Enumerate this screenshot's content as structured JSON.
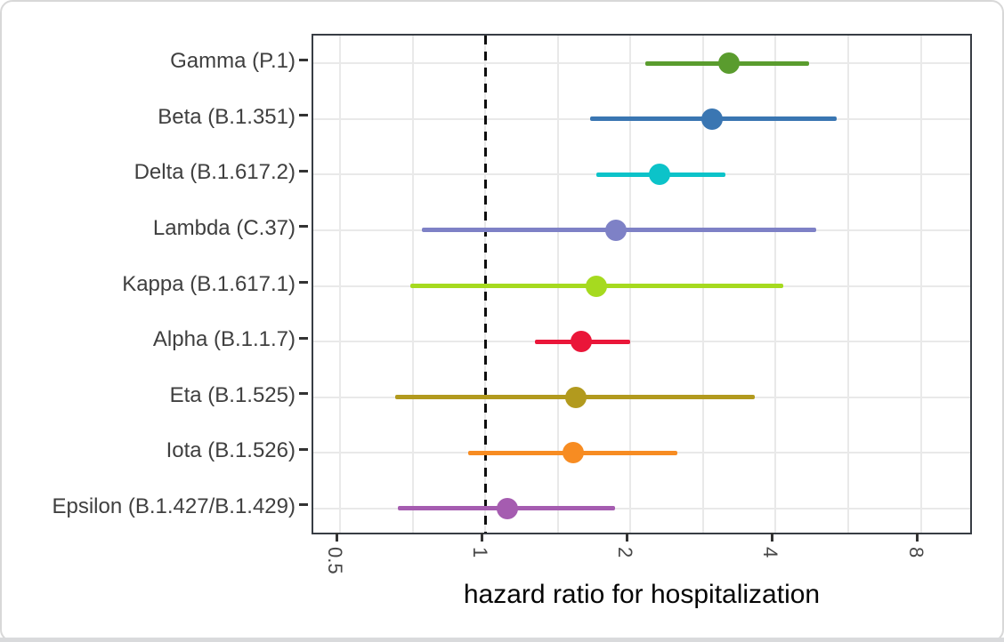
{
  "chart_data": {
    "type": "scatter",
    "subtype": "forest-plot",
    "title": "",
    "xlabel": "hazard ratio for hospitalization",
    "ylabel": "",
    "x_scale": "log2",
    "x_range": [
      0.44,
      10.3
    ],
    "x_ticks": [
      0.5,
      1,
      2,
      4,
      8
    ],
    "x_tick_labels": [
      "0.5",
      "1",
      "2",
      "4",
      "8"
    ],
    "x_minor_ticks": [
      0.7071,
      1.4142,
      2.8284,
      5.6569
    ],
    "reference_line": 1,
    "grid": true,
    "legend": false,
    "rows": [
      {
        "label": "Gamma (P.1)",
        "point": 3.2,
        "lower": 2.15,
        "upper": 4.7,
        "color": "#5a9c2e"
      },
      {
        "label": "Beta (B.1.351)",
        "point": 2.95,
        "lower": 1.65,
        "upper": 5.35,
        "color": "#3a76b2"
      },
      {
        "label": "Delta (B.1.617.2)",
        "point": 2.3,
        "lower": 1.7,
        "upper": 3.15,
        "color": "#0cc3c9"
      },
      {
        "label": "Lambda (C.37)",
        "point": 1.87,
        "lower": 0.74,
        "upper": 4.85,
        "color": "#7e81c6"
      },
      {
        "label": "Kappa (B.1.617.1)",
        "point": 1.7,
        "lower": 0.7,
        "upper": 4.15,
        "color": "#a6da1f"
      },
      {
        "label": "Alpha (B.1.1.7)",
        "point": 1.58,
        "lower": 1.27,
        "upper": 2.0,
        "color": "#ea1639"
      },
      {
        "label": "Eta (B.1.525)",
        "point": 1.54,
        "lower": 0.65,
        "upper": 3.62,
        "color": "#b29a1e"
      },
      {
        "label": "Iota (B.1.526)",
        "point": 1.52,
        "lower": 0.92,
        "upper": 2.5,
        "color": "#f78c22"
      },
      {
        "label": "Epsilon (B.1.427/B.1.429)",
        "point": 1.11,
        "lower": 0.66,
        "upper": 1.86,
        "color": "#a55cb0"
      }
    ]
  },
  "colors": {
    "panel_border": "#383d44",
    "gridline": "#e9e9e9",
    "reference_line": "#0d0d0d",
    "tick": "#333333",
    "row_label_text": "#3f3f3f",
    "tick_label_text": "#474747",
    "axis_title_text": "#050505",
    "card_border": "#d8d8d8",
    "bottom_strip": "#d9dadc"
  }
}
